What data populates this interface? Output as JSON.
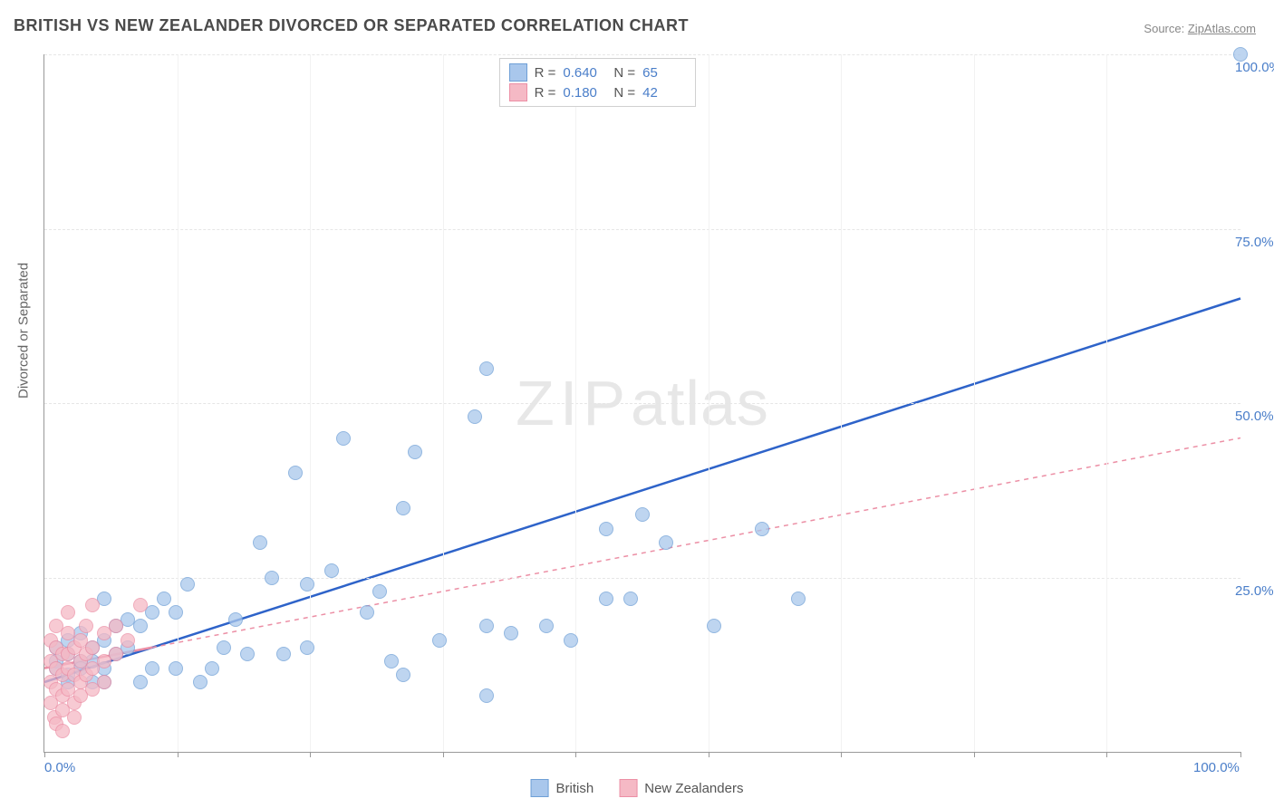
{
  "source_label": "Source:",
  "title": "BRITISH VS NEW ZEALANDER DIVORCED OR SEPARATED CORRELATION CHART",
  "source_name": "ZipAtlas.com",
  "ylabel": "Divorced or Separated",
  "chart": {
    "type": "scatter",
    "xlim": [
      0,
      100
    ],
    "ylim": [
      0,
      100
    ],
    "x_ticks": [
      0,
      11.1,
      22.2,
      33.3,
      44.4,
      55.5,
      66.6,
      77.7,
      88.8,
      100
    ],
    "y_gridlines": [
      25,
      50,
      75,
      100
    ],
    "x_axis_labels": [
      {
        "v": 0,
        "t": "0.0%"
      },
      {
        "v": 100,
        "t": "100.0%"
      }
    ],
    "y_axis_labels": [
      {
        "v": 25,
        "t": "25.0%"
      },
      {
        "v": 50,
        "t": "50.0%"
      },
      {
        "v": 75,
        "t": "75.0%"
      },
      {
        "v": 100,
        "t": "100.0%"
      }
    ],
    "series": [
      {
        "name": "British",
        "color_fill": "#a9c7ec",
        "color_stroke": "#6e9fd6",
        "line_color": "#2e63c9",
        "line_dash": "none",
        "line_width": 2.5,
        "R": "0.640",
        "N": "65",
        "trend": {
          "x1": 0,
          "y1": 10,
          "x2": 100,
          "y2": 65
        },
        "points": [
          [
            100,
            100
          ],
          [
            47,
            32
          ],
          [
            50,
            34
          ],
          [
            52,
            30
          ],
          [
            56,
            18
          ],
          [
            60,
            32
          ],
          [
            63,
            22
          ],
          [
            49,
            22
          ],
          [
            47,
            22
          ],
          [
            44,
            16
          ],
          [
            42,
            18
          ],
          [
            39,
            17
          ],
          [
            37,
            18
          ],
          [
            36,
            48
          ],
          [
            33,
            16
          ],
          [
            31,
            43
          ],
          [
            30,
            35
          ],
          [
            28,
            23
          ],
          [
            29,
            13
          ],
          [
            27,
            20
          ],
          [
            25,
            45
          ],
          [
            24,
            26
          ],
          [
            22,
            24
          ],
          [
            22,
            15
          ],
          [
            21,
            40
          ],
          [
            20,
            14
          ],
          [
            19,
            25
          ],
          [
            18,
            30
          ],
          [
            17,
            14
          ],
          [
            16,
            19
          ],
          [
            15,
            15
          ],
          [
            14,
            12
          ],
          [
            13,
            10
          ],
          [
            12,
            24
          ],
          [
            11,
            20
          ],
          [
            11,
            12
          ],
          [
            10,
            22
          ],
          [
            9,
            20
          ],
          [
            9,
            12
          ],
          [
            8,
            18
          ],
          [
            8,
            10
          ],
          [
            7,
            15
          ],
          [
            7,
            19
          ],
          [
            6,
            14
          ],
          [
            6,
            18
          ],
          [
            5,
            12
          ],
          [
            5,
            16
          ],
          [
            5,
            10
          ],
          [
            5,
            22
          ],
          [
            4,
            13
          ],
          [
            4,
            15
          ],
          [
            4,
            10
          ],
          [
            3,
            13
          ],
          [
            3,
            17
          ],
          [
            3,
            12
          ],
          [
            2,
            14
          ],
          [
            2,
            11
          ],
          [
            2,
            16
          ],
          [
            2,
            10
          ],
          [
            1,
            13
          ],
          [
            1,
            12
          ],
          [
            1,
            15
          ],
          [
            37,
            8
          ],
          [
            30,
            11
          ],
          [
            37,
            55
          ]
        ]
      },
      {
        "name": "New Zealanders",
        "color_fill": "#f5b9c5",
        "color_stroke": "#ec8fa5",
        "line_color": "#ec8fa5",
        "line_dash": "5,5",
        "line_width": 1.5,
        "R": "0.180",
        "N": "42",
        "trend": {
          "x1": 0,
          "y1": 12,
          "x2": 100,
          "y2": 45
        },
        "trend_solid_until": 9,
        "points": [
          [
            0.5,
            13
          ],
          [
            0.5,
            10
          ],
          [
            0.5,
            7
          ],
          [
            0.5,
            16
          ],
          [
            0.8,
            5
          ],
          [
            1,
            15
          ],
          [
            1,
            12
          ],
          [
            1,
            9
          ],
          [
            1,
            4
          ],
          [
            1,
            18
          ],
          [
            1.5,
            14
          ],
          [
            1.5,
            11
          ],
          [
            1.5,
            8
          ],
          [
            1.5,
            6
          ],
          [
            1.5,
            3
          ],
          [
            2,
            17
          ],
          [
            2,
            12
          ],
          [
            2,
            14
          ],
          [
            2,
            9
          ],
          [
            2,
            20
          ],
          [
            2.5,
            7
          ],
          [
            2.5,
            15
          ],
          [
            2.5,
            11
          ],
          [
            2.5,
            5
          ],
          [
            3,
            13
          ],
          [
            3,
            10
          ],
          [
            3,
            16
          ],
          [
            3,
            8
          ],
          [
            3.5,
            14
          ],
          [
            3.5,
            11
          ],
          [
            3.5,
            18
          ],
          [
            4,
            12
          ],
          [
            4,
            15
          ],
          [
            4,
            9
          ],
          [
            4,
            21
          ],
          [
            5,
            13
          ],
          [
            5,
            17
          ],
          [
            5,
            10
          ],
          [
            6,
            14
          ],
          [
            6,
            18
          ],
          [
            7,
            16
          ],
          [
            8,
            21
          ]
        ]
      }
    ]
  },
  "legend_bottom": [
    {
      "label": "British",
      "fill": "#a9c7ec",
      "stroke": "#6e9fd6"
    },
    {
      "label": "New Zealanders",
      "fill": "#f5b9c5",
      "stroke": "#ec8fa5"
    }
  ],
  "watermark": {
    "a": "ZIP",
    "b": "atlas"
  }
}
